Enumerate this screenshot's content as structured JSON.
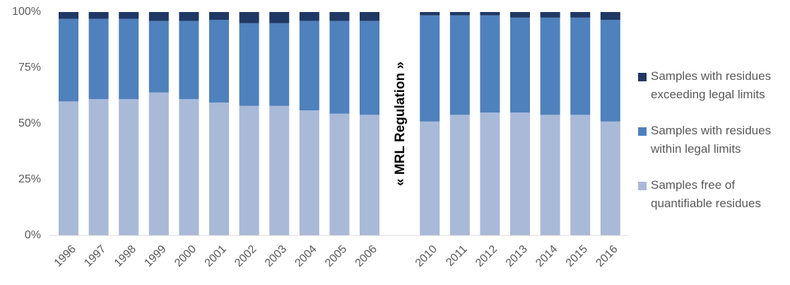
{
  "chart_data": {
    "type": "bar",
    "stacked": true,
    "normalized": true,
    "categories": [
      "1996",
      "1997",
      "1998",
      "1999",
      "2000",
      "2001",
      "2002",
      "2003",
      "2004",
      "2005",
      "2006",
      "2010",
      "2011",
      "2012",
      "2013",
      "2014",
      "2015",
      "2016"
    ],
    "gap_after_category": "2006",
    "annotation": "« MRL Regulation »",
    "ylim": [
      0,
      100
    ],
    "y_ticks": [
      "0%",
      "25%",
      "50%",
      "75%",
      "100%"
    ],
    "y_tick_values": [
      0,
      25,
      50,
      75,
      100
    ],
    "series": [
      {
        "name": "Samples free of quantifiable residues",
        "color": "#a9b9d8",
        "values": [
          60,
          61,
          61,
          64,
          61,
          59.5,
          58,
          58,
          56,
          54.5,
          54,
          51,
          54,
          55,
          55,
          54,
          54,
          51
        ]
      },
      {
        "name": "Samples with residues within legal limits",
        "color": "#4f81bd",
        "values": [
          37,
          36,
          36,
          32,
          35,
          37,
          37,
          37,
          40,
          41.5,
          42,
          47.5,
          44.5,
          43.5,
          42.5,
          43.5,
          43.5,
          45.5
        ]
      },
      {
        "name": "Samples with residues exceeding legal limits",
        "color": "#1f3864",
        "values": [
          3,
          3,
          3,
          4,
          4,
          3.5,
          5,
          5,
          4,
          4,
          4,
          1.5,
          1.5,
          1.5,
          2.5,
          2.5,
          2.5,
          3.5
        ]
      }
    ],
    "legend_position": "right",
    "grid": false
  },
  "legend": [
    {
      "label": "Samples with residues exceeding legal limits",
      "color": "#1f3864"
    },
    {
      "label": "Samples with residues within legal limits",
      "color": "#4f81bd"
    },
    {
      "label": "Samples free of quantifiable residues",
      "color": "#a9b9d8"
    }
  ]
}
